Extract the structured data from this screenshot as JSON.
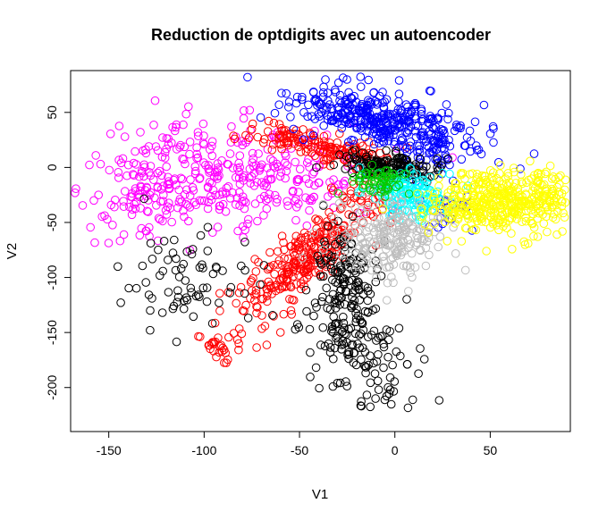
{
  "chart_data": {
    "type": "scatter",
    "title": "Reduction de optdigits avec un autoencoder",
    "xlabel": "V1",
    "ylabel": "V2",
    "xlim": [
      -170,
      92
    ],
    "ylim": [
      -240,
      88
    ],
    "xticks": [
      -150,
      -100,
      -50,
      0,
      50
    ],
    "yticks": [
      -200,
      -150,
      -100,
      -50,
      0,
      50
    ],
    "grid": false,
    "legend": "none",
    "marker": "open-circle",
    "series": [
      {
        "color": "#ff00ff",
        "clusters": [
          {
            "n": 340,
            "cx": -90,
            "cy": -5,
            "sx": 40,
            "sy": 22,
            "rot": -0.12
          },
          {
            "n": 80,
            "cx": -130,
            "cy": -35,
            "sx": 22,
            "sy": 20,
            "rot": 0
          }
        ]
      },
      {
        "color": "#ff0000",
        "clusters": [
          {
            "n": 150,
            "cx": -40,
            "cy": 20,
            "sx": 20,
            "sy": 6,
            "rot": -0.42
          },
          {
            "n": 300,
            "cx": -45,
            "cy": -80,
            "sx": 38,
            "sy": 9,
            "rot": 1.05
          },
          {
            "n": 25,
            "cx": -95,
            "cy": -160,
            "sx": 6,
            "sy": 8,
            "rot": 0
          }
        ]
      },
      {
        "color": "#0000ff",
        "clusters": [
          {
            "n": 380,
            "cx": -5,
            "cy": 42,
            "sx": 26,
            "sy": 12,
            "rot": -0.35
          },
          {
            "n": 40,
            "cx": 20,
            "cy": 15,
            "sx": 9,
            "sy": 12,
            "rot": 0
          },
          {
            "n": 20,
            "cx": 28,
            "cy": -35,
            "sx": 6,
            "sy": 15,
            "rot": 0
          }
        ]
      },
      {
        "color": "#000000",
        "clusters": [
          {
            "n": 150,
            "cx": -2,
            "cy": 0,
            "sx": 14,
            "sy": 6,
            "rot": -0.2
          },
          {
            "n": 120,
            "cx": -25,
            "cy": -100,
            "sx": 8,
            "sy": 20,
            "rot": 0
          },
          {
            "n": 140,
            "cx": -20,
            "cy": -165,
            "sx": 14,
            "sy": 30,
            "rot": 0.2
          },
          {
            "n": 70,
            "cx": -110,
            "cy": -105,
            "sx": 18,
            "sy": 22,
            "rot": 0
          }
        ]
      },
      {
        "color": "#00ffff",
        "clusters": [
          {
            "n": 150,
            "cx": 8,
            "cy": -25,
            "sx": 10,
            "sy": 12,
            "rot": 0.2
          }
        ]
      },
      {
        "color": "#bebebe",
        "clusters": [
          {
            "n": 220,
            "cx": 0,
            "cy": -65,
            "sx": 14,
            "sy": 18,
            "rot": 0
          }
        ]
      },
      {
        "color": "#00cd00",
        "clusters": [
          {
            "n": 60,
            "cx": -8,
            "cy": -12,
            "sx": 8,
            "sy": 6,
            "rot": 0
          }
        ]
      },
      {
        "color": "#ffff00",
        "clusters": [
          {
            "n": 380,
            "cx": 55,
            "cy": -32,
            "sx": 18,
            "sy": 14,
            "rot": 0.1
          },
          {
            "n": 60,
            "cx": 80,
            "cy": -25,
            "sx": 6,
            "sy": 12,
            "rot": 0
          }
        ]
      }
    ]
  }
}
